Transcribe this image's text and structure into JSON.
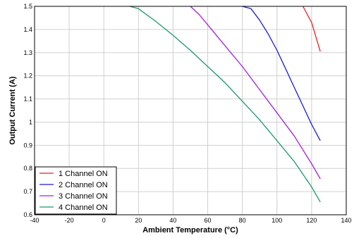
{
  "chart_data": {
    "type": "line",
    "title": "",
    "xlabel": "Ambient Temperature (°C)",
    "ylabel": "Output Current (A)",
    "xlim": [
      -40,
      140
    ],
    "ylim": [
      0.6,
      1.5
    ],
    "x_ticks": [
      -40,
      -20,
      0,
      20,
      40,
      60,
      80,
      100,
      120,
      140
    ],
    "y_ticks": [
      0.6,
      0.7,
      0.8,
      0.9,
      1,
      1.1,
      1.2,
      1.3,
      1.4,
      1.5
    ],
    "grid": true,
    "legend_position": "bottom-left",
    "series": [
      {
        "name": "1 Channel ON",
        "color": "#e8221e",
        "points": [
          [
            115,
            1.5
          ],
          [
            120,
            1.43
          ],
          [
            125,
            1.305
          ]
        ]
      },
      {
        "name": "2 Channel ON",
        "color": "#1a1fd0",
        "points": [
          [
            80,
            1.5
          ],
          [
            85,
            1.49
          ],
          [
            90,
            1.44
          ],
          [
            95,
            1.38
          ],
          [
            100,
            1.31
          ],
          [
            105,
            1.23
          ],
          [
            110,
            1.15
          ],
          [
            115,
            1.07
          ],
          [
            120,
            0.99
          ],
          [
            125,
            0.92
          ]
        ]
      },
      {
        "name": "3 Channel ON",
        "color": "#a020e8",
        "points": [
          [
            50,
            1.5
          ],
          [
            55,
            1.465
          ],
          [
            60,
            1.42
          ],
          [
            70,
            1.33
          ],
          [
            80,
            1.24
          ],
          [
            90,
            1.14
          ],
          [
            100,
            1.04
          ],
          [
            110,
            0.94
          ],
          [
            120,
            0.82
          ],
          [
            125,
            0.755
          ]
        ]
      },
      {
        "name": "4 Channel ON",
        "color": "#1f9a6a",
        "points": [
          [
            15,
            1.5
          ],
          [
            20,
            1.49
          ],
          [
            30,
            1.435
          ],
          [
            40,
            1.375
          ],
          [
            50,
            1.31
          ],
          [
            60,
            1.24
          ],
          [
            70,
            1.17
          ],
          [
            80,
            1.09
          ],
          [
            90,
            1.01
          ],
          [
            100,
            0.92
          ],
          [
            110,
            0.83
          ],
          [
            120,
            0.72
          ],
          [
            125,
            0.655
          ]
        ]
      }
    ]
  }
}
